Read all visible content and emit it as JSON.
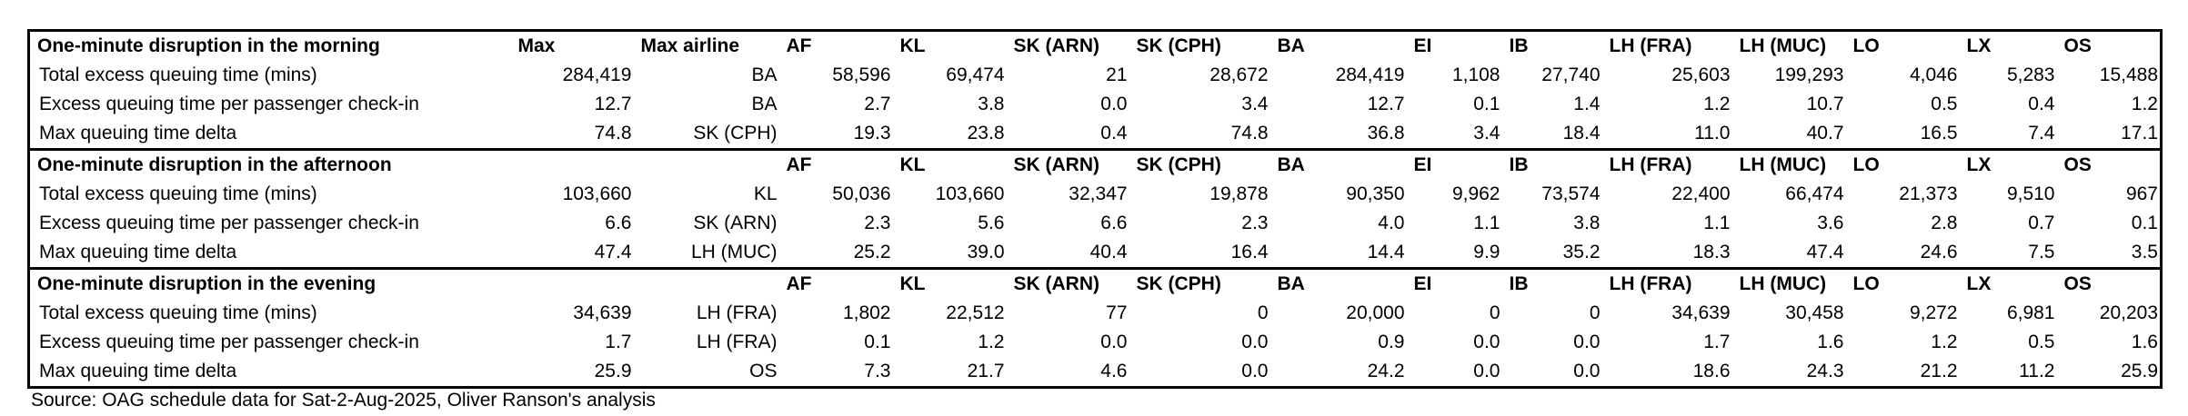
{
  "airline_columns": [
    "AF",
    "KL",
    "SK (ARN)",
    "SK (CPH)",
    "BA",
    "EI",
    "IB",
    "LH (FRA)",
    "LH (MUC)",
    "LO",
    "LX",
    "OS"
  ],
  "header_max": "Max",
  "header_max_airline": "Max airline",
  "sections": [
    {
      "title": "One-minute disruption in the morning",
      "rows": [
        {
          "label": "Total excess queuing time (mins)",
          "max": "284,419",
          "max_airline": "BA",
          "values": [
            "58,596",
            "69,474",
            "21",
            "28,672",
            "284,419",
            "1,108",
            "27,740",
            "25,603",
            "199,293",
            "4,046",
            "5,283",
            "15,488"
          ]
        },
        {
          "label": "Excess queuing time per passenger check-in",
          "max": "12.7",
          "max_airline": "BA",
          "values": [
            "2.7",
            "3.8",
            "0.0",
            "3.4",
            "12.7",
            "0.1",
            "1.4",
            "1.2",
            "10.7",
            "0.5",
            "0.4",
            "1.2"
          ]
        },
        {
          "label": "Max queuing time delta",
          "max": "74.8",
          "max_airline": "SK (CPH)",
          "values": [
            "19.3",
            "23.8",
            "0.4",
            "74.8",
            "36.8",
            "3.4",
            "18.4",
            "11.0",
            "40.7",
            "16.5",
            "7.4",
            "17.1"
          ]
        }
      ]
    },
    {
      "title": "One-minute disruption in the afternoon",
      "rows": [
        {
          "label": "Total excess queuing time (mins)",
          "max": "103,660",
          "max_airline": "KL",
          "values": [
            "50,036",
            "103,660",
            "32,347",
            "19,878",
            "90,350",
            "9,962",
            "73,574",
            "22,400",
            "66,474",
            "21,373",
            "9,510",
            "967"
          ]
        },
        {
          "label": "Excess queuing time per passenger check-in",
          "max": "6.6",
          "max_airline": "SK (ARN)",
          "values": [
            "2.3",
            "5.6",
            "6.6",
            "2.3",
            "4.0",
            "1.1",
            "3.8",
            "1.1",
            "3.6",
            "2.8",
            "0.7",
            "0.1"
          ]
        },
        {
          "label": "Max queuing time delta",
          "max": "47.4",
          "max_airline": "LH (MUC)",
          "values": [
            "25.2",
            "39.0",
            "40.4",
            "16.4",
            "14.4",
            "9.9",
            "35.2",
            "18.3",
            "47.4",
            "24.6",
            "7.5",
            "3.5"
          ]
        }
      ]
    },
    {
      "title": "One-minute disruption in the evening",
      "rows": [
        {
          "label": "Total excess queuing time (mins)",
          "max": "34,639",
          "max_airline": "LH (FRA)",
          "values": [
            "1,802",
            "22,512",
            "77",
            "0",
            "20,000",
            "0",
            "0",
            "34,639",
            "30,458",
            "9,272",
            "6,981",
            "20,203"
          ]
        },
        {
          "label": "Excess queuing time per passenger check-in",
          "max": "1.7",
          "max_airline": "LH (FRA)",
          "values": [
            "0.1",
            "1.2",
            "0.0",
            "0.0",
            "0.9",
            "0.0",
            "0.0",
            "1.7",
            "1.6",
            "1.2",
            "0.5",
            "1.6"
          ]
        },
        {
          "label": "Max queuing time delta",
          "max": "25.9",
          "max_airline": "OS",
          "values": [
            "7.3",
            "21.7",
            "4.6",
            "0.0",
            "24.2",
            "0.0",
            "0.0",
            "18.6",
            "24.3",
            "21.2",
            "11.2",
            "25.9"
          ]
        }
      ]
    }
  ],
  "source": "Source: OAG schedule data for Sat-2-Aug-2025, Oliver Ranson's analysis"
}
